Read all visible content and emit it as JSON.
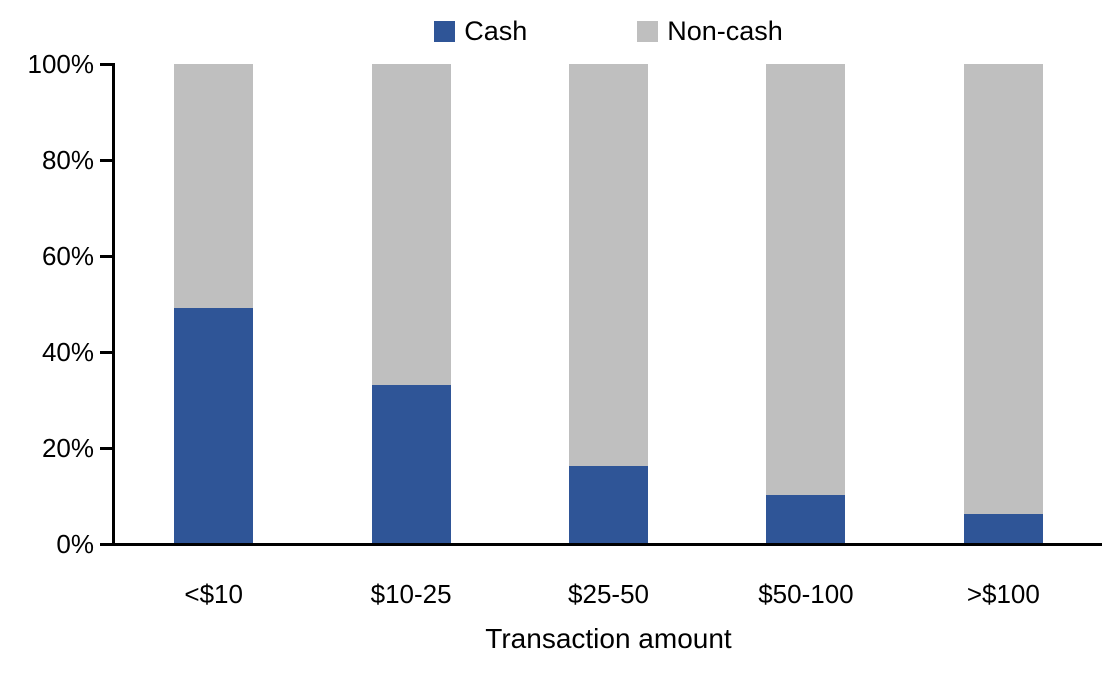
{
  "legend": {
    "items": [
      {
        "label": "Cash",
        "color": "#2F5597"
      },
      {
        "label": "Non-cash",
        "color": "#BFBFBF"
      }
    ]
  },
  "chart_data": {
    "type": "bar",
    "variant": "stacked-100-percent",
    "title": "",
    "xlabel": "Transaction amount",
    "ylabel": "",
    "categories": [
      "<$10",
      "$10-25",
      "$25-50",
      "$50-100",
      ">$100"
    ],
    "series": [
      {
        "name": "Cash",
        "color": "#2F5597",
        "values": [
          49,
          33,
          16,
          10,
          6
        ]
      },
      {
        "name": "Non-cash",
        "color": "#BFBFBF",
        "values": [
          51,
          67,
          84,
          90,
          94
        ]
      }
    ],
    "ylim": [
      0,
      100
    ],
    "yticks": [
      0,
      20,
      40,
      60,
      80,
      100
    ],
    "ytick_format": "{v}%",
    "grid": false,
    "legend_position": "top-center",
    "axis_color": "#000000",
    "background_color": "#FFFFFF"
  }
}
